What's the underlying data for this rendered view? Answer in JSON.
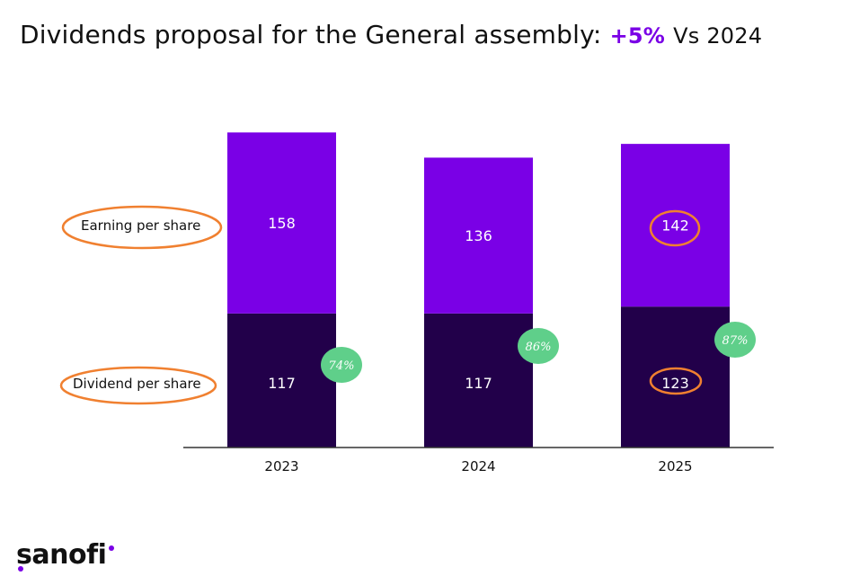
{
  "title": {
    "main": "Dividends proposal for the General assembly:",
    "highlight": "+5%",
    "suffix": "Vs 2024"
  },
  "colors": {
    "eps": "#7a00e6",
    "dividend": "#22004a",
    "payout_bubble": "#5fcf8a",
    "annotation": "#f08030",
    "axis": "#333333"
  },
  "chart_data": {
    "type": "bar",
    "stacked": true,
    "categories": [
      "2023",
      "2024",
      "2025"
    ],
    "series": [
      {
        "name": "Dividend per share",
        "values": [
          117,
          117,
          123
        ]
      },
      {
        "name": "Earning per share",
        "values": [
          158,
          136,
          142
        ]
      }
    ],
    "payout_ratio_labels": [
      "74%",
      "86%",
      "87%"
    ],
    "highlighted_values": {
      "2025_eps": 142,
      "2025_dividend": 123
    },
    "legend_placement": "left",
    "grid": false
  },
  "logo": {
    "text": "sanofi"
  }
}
